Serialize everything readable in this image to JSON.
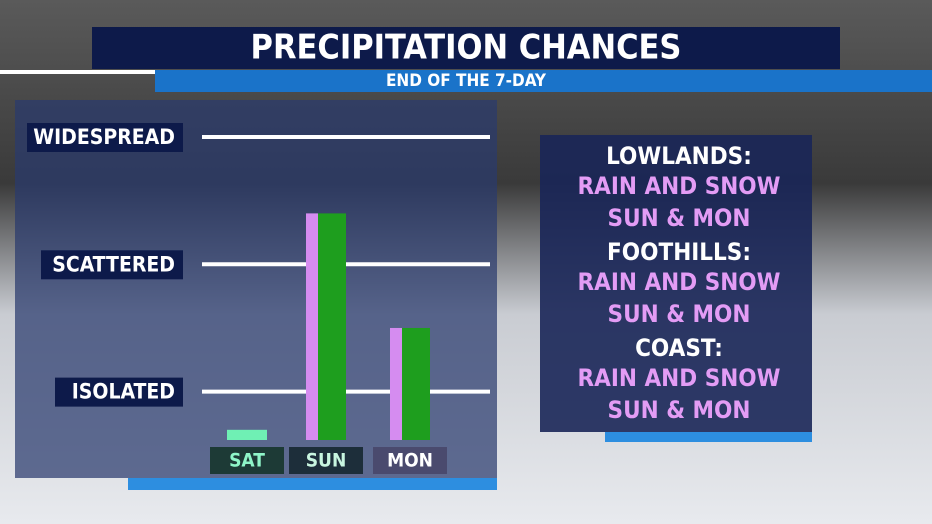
{
  "chart_data": {
    "type": "bar",
    "title": "PRECIPITATION CHANCES",
    "subtitle": "END OF THE 7-DAY",
    "categories": [
      "SAT",
      "SUN",
      "MON"
    ],
    "series": [
      {
        "color": "#d58cf0",
        "values": [
          null,
          2.4,
          1.5
        ]
      },
      {
        "color": "#1e9e1e",
        "values": [
          null,
          2.4,
          1.5
        ]
      },
      {
        "color": "#6ff0b4",
        "values": [
          0.7,
          null,
          null
        ]
      }
    ],
    "ylim": [
      0.62,
      3.0
    ],
    "yticks": [
      {
        "value": 1,
        "label": "ISOLATED"
      },
      {
        "value": 2,
        "label": "SCATTERED"
      },
      {
        "value": 3,
        "label": "WIDESPREAD"
      }
    ],
    "grid": true
  },
  "panel": [
    {
      "heading": "LOWLANDS:",
      "lines": [
        "RAIN AND SNOW",
        "SUN & MON"
      ]
    },
    {
      "heading": "FOOTHILLS:",
      "lines": [
        "RAIN AND SNOW",
        "SUN & MON"
      ]
    },
    {
      "heading": "COAST:",
      "lines": [
        "RAIN AND SNOW",
        "SUN & MON"
      ]
    }
  ]
}
